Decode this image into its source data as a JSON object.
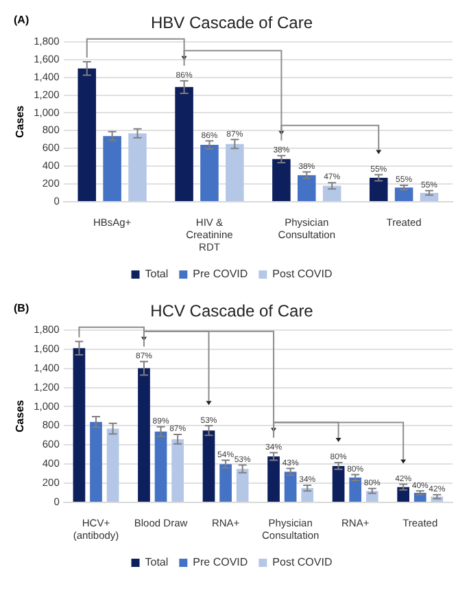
{
  "chart_data": [
    {
      "type": "bar",
      "title": "HBV Cascade of Care",
      "ylabel": "Cases",
      "annotations": [
        "(A)",
        "86%",
        "86%",
        "87%",
        "38%",
        "38%",
        "47%",
        "55%",
        "55%",
        "55%"
      ],
      "categories": [
        "HBsAg+",
        "HIV & Creatinine RDT",
        "Physician Consultation",
        "Treated"
      ],
      "series": [
        {
          "name": "Total",
          "color": "#0d1f5c",
          "values": [
            1500,
            1290,
            480,
            270
          ],
          "errors": [
            75,
            70,
            40,
            35
          ]
        },
        {
          "name": "Pre COVID",
          "color": "#4472c4",
          "values": [
            740,
            640,
            300,
            160
          ],
          "errors": [
            50,
            45,
            35,
            25
          ]
        },
        {
          "name": "Post COVID",
          "color": "#b4c7e7",
          "values": [
            770,
            650,
            180,
            100
          ],
          "errors": [
            50,
            50,
            35,
            25
          ]
        }
      ],
      "ylim": [
        0,
        1800
      ],
      "yticks": [
        0,
        200,
        400,
        600,
        800,
        {
          "value": 1000,
          "label": "1,000"
        },
        {
          "value": 1200,
          "label": "1,200"
        },
        {
          "value": 1400,
          "label": "1,400"
        },
        {
          "value": 1600,
          "label": "1,600"
        },
        {
          "value": 1800,
          "label": "1,800"
        }
      ],
      "grid": "y",
      "legend": "bottom"
    },
    {
      "type": "bar",
      "title": "HCV Cascade of Care",
      "ylabel": "Cases",
      "annotations": [
        "(B)",
        "87%",
        "89%",
        "87%",
        "53%",
        "54%",
        "53%",
        "34%",
        "43%",
        "34%",
        "80%",
        "80%",
        "80%",
        "42%",
        "40%",
        "42%"
      ],
      "categories": [
        "HCV+ (antibody)",
        "Blood Draw",
        "RNA+",
        "Physician Consultation",
        "RNA+",
        "Treated"
      ],
      "series": [
        {
          "name": "Total",
          "color": "#0d1f5c",
          "values": [
            1610,
            1400,
            750,
            480,
            380,
            160
          ],
          "errors": [
            70,
            70,
            50,
            40,
            35,
            30
          ]
        },
        {
          "name": "Pre COVID",
          "color": "#4472c4",
          "values": [
            840,
            740,
            400,
            320,
            260,
            100
          ],
          "errors": [
            55,
            50,
            40,
            35,
            30,
            20
          ]
        },
        {
          "name": "Post COVID",
          "color": "#b4c7e7",
          "values": [
            770,
            660,
            350,
            150,
            120,
            60
          ],
          "errors": [
            55,
            50,
            40,
            30,
            25,
            20
          ]
        }
      ],
      "ylim": [
        0,
        1800
      ],
      "yticks": [
        0,
        200,
        400,
        600,
        800,
        {
          "value": 1000,
          "label": "1,000"
        },
        {
          "value": 1200,
          "label": "1,200"
        },
        {
          "value": 1400,
          "label": "1,400"
        },
        {
          "value": 1600,
          "label": "1,600"
        },
        {
          "value": 1800,
          "label": "1,800"
        }
      ],
      "grid": "y",
      "legend": "bottom"
    }
  ]
}
